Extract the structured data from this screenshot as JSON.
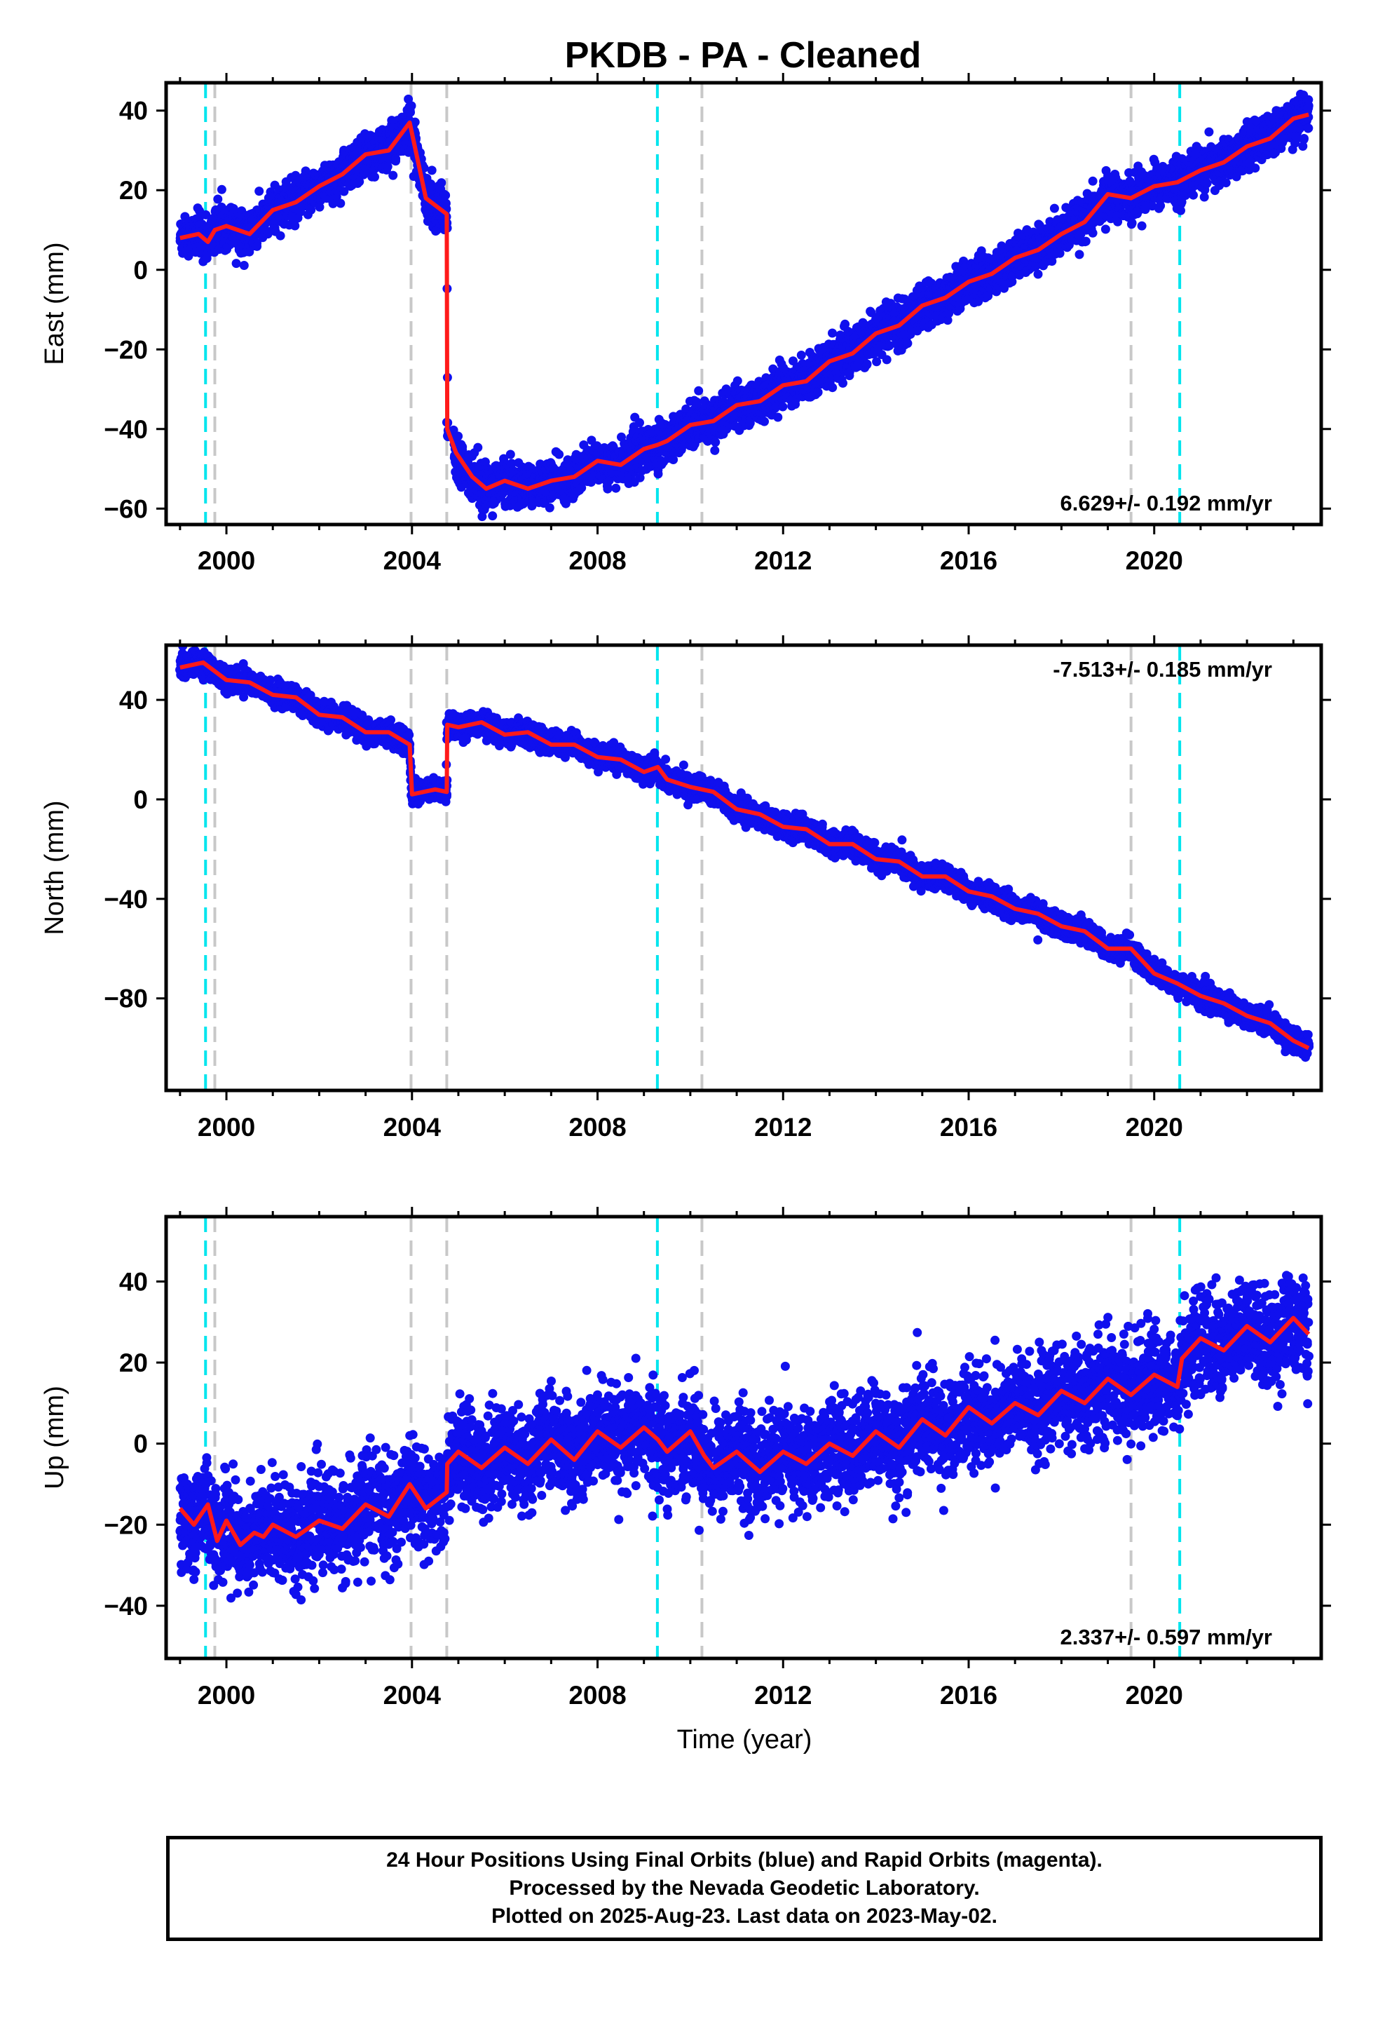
{
  "title": "PKDB  - PA - Cleaned",
  "xlabel": "Time (year)",
  "footer": {
    "line1": "24 Hour Positions Using Final Orbits (blue) and Rapid Orbits (magenta).",
    "line2": "Processed by the Nevada Geodetic Laboratory.",
    "line3": "Plotted on 2025-Aug-23. Last data on 2023-May-02."
  },
  "colors": {
    "points": "#1010ee",
    "model": "#ff1a1a",
    "equipment_change": "#00e5ee",
    "other_change": "#c8c8c8",
    "frame": "#000000"
  },
  "chart_data": [
    {
      "type": "scatter",
      "panel": "east",
      "ylabel": "East (mm)",
      "rate": "6.629+/- 0.192 mm/yr",
      "xlim": [
        1998.7,
        2023.6
      ],
      "ylim": [
        -64,
        47
      ],
      "xticks": [
        2000,
        2004,
        2008,
        2012,
        2016,
        2020
      ],
      "yticks": [
        -60,
        -40,
        -20,
        0,
        20,
        40
      ],
      "series": [
        {
          "kind": "model",
          "x": [
            1999.0,
            1999.4,
            1999.6,
            1999.75,
            2000.0,
            2000.5,
            2001.0,
            2001.5,
            2002.0,
            2002.5,
            2003.0,
            2003.5,
            2003.95,
            2004.3,
            2004.75,
            2004.76,
            2004.95,
            2005.3,
            2005.6,
            2006.0,
            2006.5,
            2007.0,
            2007.5,
            2008.0,
            2008.5,
            2009.0,
            2009.29,
            2009.5,
            2010.0,
            2010.5,
            2011.0,
            2011.5,
            2012.0,
            2012.5,
            2013.0,
            2013.5,
            2014.0,
            2014.5,
            2015.0,
            2015.5,
            2016.0,
            2016.5,
            2017.0,
            2017.5,
            2018.0,
            2018.5,
            2019.0,
            2019.5,
            2020.0,
            2020.5,
            2021.0,
            2021.5,
            2022.0,
            2022.5,
            2023.0,
            2023.33
          ],
          "y": [
            8,
            9,
            7,
            10,
            11,
            9,
            15,
            17,
            21,
            24,
            29,
            30,
            37,
            18,
            14,
            -40,
            -46,
            -52,
            -55,
            -53,
            -55,
            -53,
            -52,
            -48,
            -49,
            -45,
            -44,
            -43,
            -39,
            -38,
            -34,
            -33,
            -29,
            -28,
            -23,
            -21,
            -16,
            -14,
            -9,
            -7,
            -3,
            -1,
            3,
            5,
            9,
            12,
            19,
            18,
            21,
            22,
            25,
            27,
            31,
            33,
            38,
            39
          ],
          "scatter": 2.5
        }
      ]
    },
    {
      "type": "scatter",
      "panel": "north",
      "ylabel": "North (mm)",
      "rate": "-7.513+/- 0.185 mm/yr",
      "xlim": [
        1998.7,
        2023.6
      ],
      "ylim": [
        -117,
        62
      ],
      "xticks": [
        2000,
        2004,
        2008,
        2012,
        2016,
        2020
      ],
      "yticks": [
        -80,
        -40,
        0,
        40
      ],
      "series": [
        {
          "kind": "model",
          "x": [
            1999.0,
            1999.5,
            2000.0,
            2000.5,
            2001.0,
            2001.5,
            2002.0,
            2002.5,
            2003.0,
            2003.5,
            2003.95,
            2004.0,
            2004.5,
            2004.75,
            2004.76,
            2005.0,
            2005.5,
            2006.0,
            2006.5,
            2007.0,
            2007.5,
            2008.0,
            2008.5,
            2009.0,
            2009.3,
            2009.5,
            2010.0,
            2010.5,
            2011.0,
            2011.5,
            2012.0,
            2012.5,
            2013.0,
            2013.5,
            2014.0,
            2014.5,
            2015.0,
            2015.5,
            2016.0,
            2016.5,
            2017.0,
            2017.5,
            2018.0,
            2018.5,
            2019.0,
            2019.5,
            2020.0,
            2020.5,
            2021.0,
            2021.5,
            2022.0,
            2022.5,
            2023.0,
            2023.33
          ],
          "y": [
            53,
            55,
            48,
            47,
            42,
            41,
            34,
            33,
            27,
            27,
            22,
            2,
            4,
            3,
            30,
            29,
            31,
            26,
            27,
            22,
            22,
            17,
            16,
            11,
            13,
            8,
            5,
            3,
            -4,
            -6,
            -11,
            -12,
            -18,
            -18,
            -24,
            -25,
            -31,
            -31,
            -37,
            -39,
            -44,
            -46,
            -51,
            -53,
            -60,
            -60,
            -70,
            -74,
            -79,
            -82,
            -87,
            -90,
            -97,
            -100
          ],
          "scatter": 2.2
        }
      ]
    },
    {
      "type": "scatter",
      "panel": "up",
      "ylabel": "Up (mm)",
      "rate": "2.337+/- 0.597 mm/yr",
      "xlim": [
        1998.7,
        2023.6
      ],
      "ylim": [
        -53,
        56
      ],
      "xticks": [
        2000,
        2004,
        2008,
        2012,
        2016,
        2020
      ],
      "yticks": [
        -40,
        -20,
        0,
        20,
        40
      ],
      "series": [
        {
          "kind": "model",
          "x": [
            1999.0,
            1999.3,
            1999.6,
            1999.8,
            2000.0,
            2000.3,
            2000.6,
            2000.8,
            2001.0,
            2001.5,
            2002.0,
            2002.5,
            2003.0,
            2003.5,
            2003.95,
            2004.3,
            2004.75,
            2004.76,
            2005.0,
            2005.5,
            2006.0,
            2006.5,
            2007.0,
            2007.5,
            2008.0,
            2008.5,
            2009.0,
            2009.3,
            2009.5,
            2010.0,
            2010.3,
            2010.5,
            2011.0,
            2011.5,
            2012.0,
            2012.5,
            2013.0,
            2013.5,
            2014.0,
            2014.5,
            2015.0,
            2015.5,
            2016.0,
            2016.5,
            2017.0,
            2017.5,
            2018.0,
            2018.5,
            2019.0,
            2019.5,
            2020.0,
            2020.5,
            2020.6,
            2021.0,
            2021.5,
            2022.0,
            2022.5,
            2023.0,
            2023.33
          ],
          "y": [
            -16,
            -20,
            -15,
            -24,
            -19,
            -25,
            -22,
            -23,
            -20,
            -23,
            -19,
            -21,
            -15,
            -18,
            -10,
            -16,
            -12,
            -5,
            -2,
            -6,
            -1,
            -5,
            1,
            -4,
            3,
            -1,
            4,
            1,
            -2,
            3,
            -3,
            -6,
            -2,
            -7,
            -2,
            -5,
            0,
            -3,
            3,
            -1,
            6,
            2,
            9,
            5,
            10,
            7,
            13,
            10,
            16,
            12,
            17,
            14,
            21,
            26,
            23,
            29,
            25,
            31,
            27
          ],
          "scatter": 6.0
        }
      ]
    }
  ],
  "vlines": {
    "cyan": [
      1999.55,
      2009.29,
      2020.55
    ],
    "gray": [
      1999.75,
      2003.98,
      2004.75,
      2010.25,
      2019.5
    ]
  }
}
